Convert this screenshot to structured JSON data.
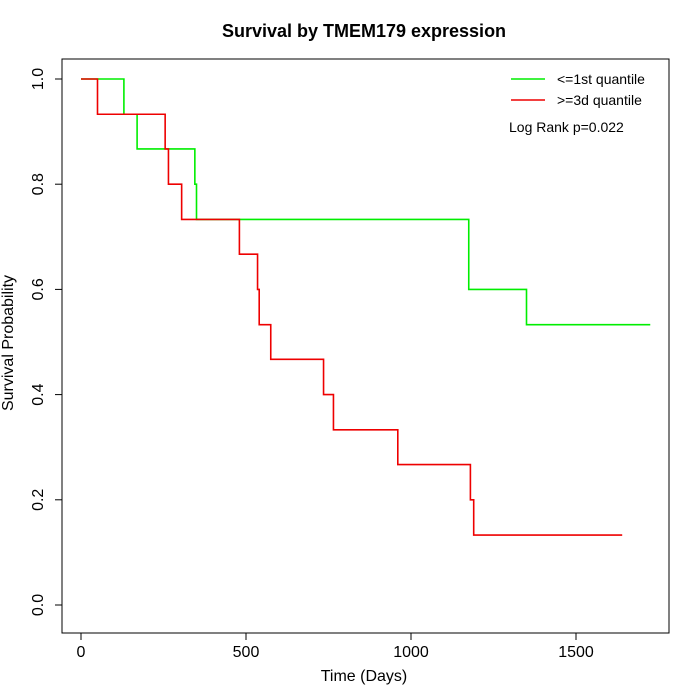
{
  "chart_data": {
    "type": "line",
    "subtype": "kaplan-meier-step",
    "title": "Survival by TMEM179 expression",
    "xlabel": "Time (Days)",
    "ylabel": "Survival Probability",
    "xlim": [
      0,
      1780
    ],
    "ylim": [
      0,
      1.0
    ],
    "x_ticks": [
      0,
      500,
      1000,
      1500
    ],
    "y_ticks": [
      0.0,
      0.2,
      0.4,
      0.6,
      0.8,
      1.0
    ],
    "x_tick_labels": [
      "0",
      "500",
      "1000",
      "1500"
    ],
    "y_tick_labels": [
      "0.0",
      "0.2",
      "0.4",
      "0.6",
      "0.8",
      "1.0"
    ],
    "legend_position": "top-right",
    "annotation": "Log Rank p=0.022",
    "grid": false,
    "series": [
      {
        "name": "<=1st quantile",
        "color": "#00ee00",
        "times": [
          0,
          130,
          170,
          345,
          350,
          1175,
          1350,
          1725
        ],
        "survival": [
          1.0,
          0.933,
          0.867,
          0.8,
          0.733,
          0.6,
          0.533,
          0.533
        ]
      },
      {
        "name": ">=3d quantile",
        "color": "#ee0000",
        "times": [
          0,
          50,
          255,
          265,
          305,
          480,
          535,
          540,
          575,
          735,
          765,
          960,
          1180,
          1190,
          1640
        ],
        "survival": [
          1.0,
          0.933,
          0.867,
          0.8,
          0.733,
          0.667,
          0.6,
          0.533,
          0.467,
          0.4,
          0.333,
          0.267,
          0.2,
          0.133,
          0.133
        ]
      }
    ]
  }
}
